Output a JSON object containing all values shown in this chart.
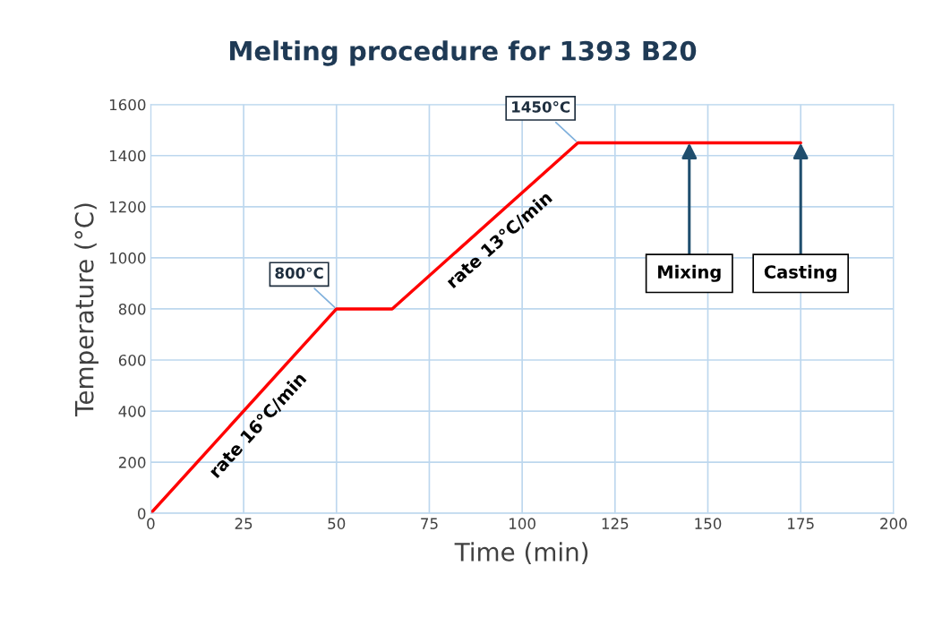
{
  "chart_data": {
    "type": "line",
    "title": "Melting procedure for 1393 B20",
    "xlabel": "Time (min)",
    "ylabel": "Temperature (°C)",
    "x": [
      0,
      50,
      65,
      115,
      175
    ],
    "series": [
      {
        "color": "#ff0000",
        "values": [
          0,
          800,
          800,
          1450,
          1450
        ]
      }
    ],
    "xlim": [
      0,
      200
    ],
    "xticks": [
      0,
      25,
      50,
      75,
      100,
      125,
      150,
      175,
      200
    ],
    "ylim": [
      0,
      1600
    ],
    "yticks": [
      0,
      200,
      400,
      600,
      800,
      1000,
      1200,
      1400,
      1600
    ],
    "grid": true,
    "marker": "none",
    "line_style": "solid",
    "legend": false,
    "annotations": [
      {
        "text": "800°C",
        "x": 50,
        "y": 800
      },
      {
        "text": "1450°C",
        "x": 115,
        "y": 1450
      },
      {
        "text": "rate 16°C/min",
        "x": 25,
        "y": 400
      },
      {
        "text": "rate 13°C/min",
        "x": 90,
        "y": 1125
      },
      {
        "text": "Mixing",
        "x": 145,
        "y": 1450
      },
      {
        "text": "Casting",
        "x": 175,
        "y": 1450
      }
    ]
  }
}
